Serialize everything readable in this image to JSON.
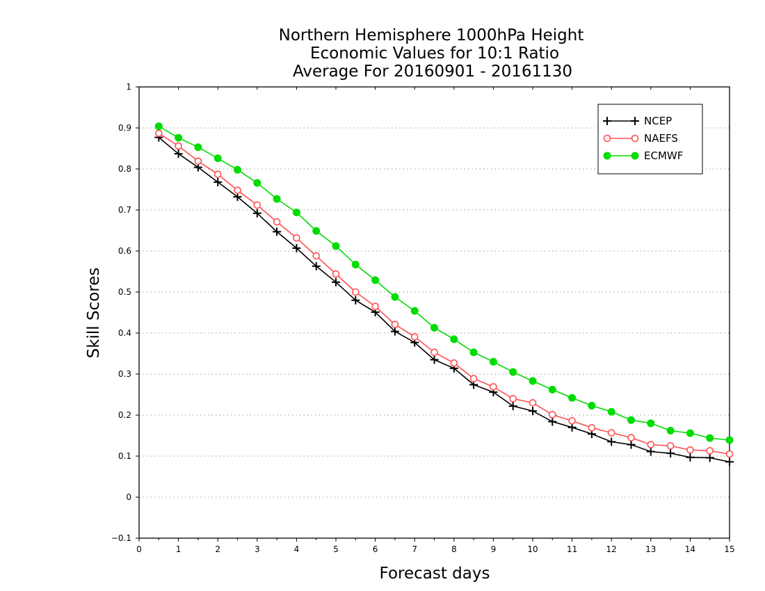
{
  "chart_data": {
    "type": "line",
    "title": [
      "Northern Hemisphere 1000hPa Height",
      "Economic Values for 10:1 Ratio",
      "Average For 20160901 - 20161130"
    ],
    "xlabel": "Forecast days",
    "ylabel": "Skill Scores",
    "xlim": [
      0,
      15
    ],
    "ylim": [
      -0.1,
      1
    ],
    "xticks": [
      "0",
      "1",
      "2",
      "3",
      "4",
      "5",
      "6",
      "7",
      "8",
      "9",
      "10",
      "11",
      "12",
      "13",
      "14",
      "15"
    ],
    "yticks": [
      "−0.1",
      "0",
      "0.1",
      "0.2",
      "0.3",
      "0.4",
      "0.5",
      "0.6",
      "0.7",
      "0.8",
      "0.9",
      "1"
    ],
    "grid": true,
    "legend_position": "top-right",
    "x": [
      0.5,
      1,
      1.5,
      2,
      2.5,
      3,
      3.5,
      4,
      4.5,
      5,
      5.5,
      6,
      6.5,
      7,
      7.5,
      8,
      8.5,
      9,
      9.5,
      10,
      10.5,
      11,
      11.5,
      12,
      12.5,
      13,
      13.5,
      14,
      14.5,
      15
    ],
    "series": [
      {
        "name": "NCEP",
        "color": "#000000",
        "marker": "plus",
        "values": [
          0.877,
          0.837,
          0.804,
          0.768,
          0.732,
          0.692,
          0.647,
          0.607,
          0.563,
          0.524,
          0.48,
          0.451,
          0.404,
          0.377,
          0.335,
          0.314,
          0.274,
          0.256,
          0.222,
          0.21,
          0.184,
          0.17,
          0.154,
          0.135,
          0.128,
          0.111,
          0.107,
          0.097,
          0.096,
          0.086
        ]
      },
      {
        "name": "NAEFS",
        "color": "#ff5050",
        "marker": "open-circle",
        "values": [
          0.887,
          0.856,
          0.819,
          0.787,
          0.748,
          0.712,
          0.671,
          0.632,
          0.588,
          0.544,
          0.5,
          0.465,
          0.421,
          0.391,
          0.353,
          0.327,
          0.289,
          0.269,
          0.24,
          0.23,
          0.201,
          0.186,
          0.169,
          0.157,
          0.145,
          0.128,
          0.125,
          0.115,
          0.113,
          0.105
        ]
      },
      {
        "name": "ECMWF",
        "color": "#00dc00",
        "marker": "filled-circle",
        "values": [
          0.904,
          0.876,
          0.853,
          0.826,
          0.798,
          0.766,
          0.727,
          0.694,
          0.649,
          0.612,
          0.567,
          0.529,
          0.488,
          0.454,
          0.413,
          0.385,
          0.353,
          0.33,
          0.305,
          0.283,
          0.262,
          0.242,
          0.223,
          0.208,
          0.188,
          0.18,
          0.162,
          0.156,
          0.144,
          0.139
        ]
      }
    ]
  }
}
